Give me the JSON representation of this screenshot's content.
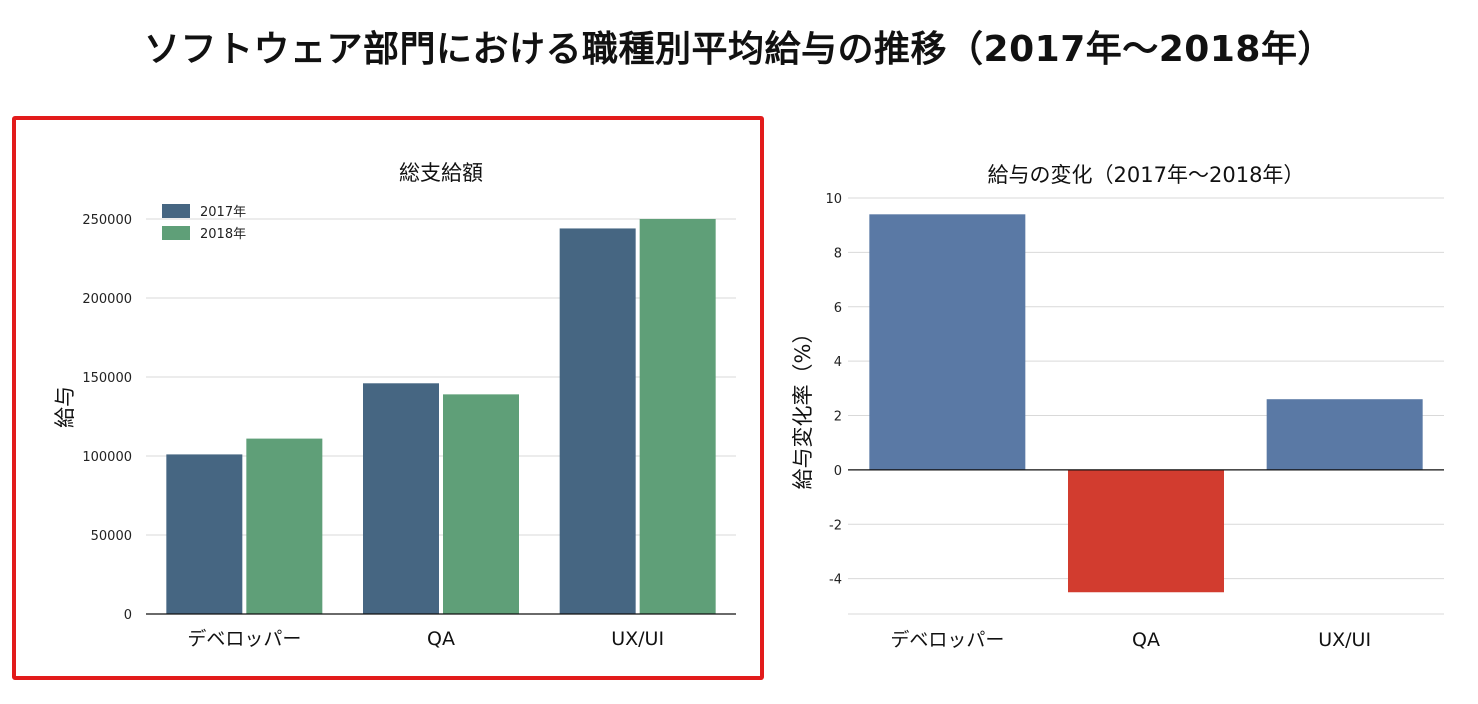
{
  "page_title": "ソフトウェア部門における職種別平均給与の推移（2017年〜2018年）",
  "colors": {
    "series_2017": "#466682",
    "series_2018": "#5f9f78",
    "positive": "#5a79a5",
    "negative": "#d23c2f",
    "highlight_border": "#e21b1b"
  },
  "chart_data": [
    {
      "type": "bar",
      "title": "総支給額",
      "xlabel": "",
      "ylabel": "給与",
      "categories": [
        "デベロッパー",
        "QA",
        "UX/UI"
      ],
      "series": [
        {
          "name": "2017年",
          "values": [
            101000,
            146000,
            244000
          ]
        },
        {
          "name": "2018年",
          "values": [
            111000,
            139000,
            250000
          ]
        }
      ],
      "ylim": [
        0,
        262000
      ],
      "yticks": [
        0,
        50000,
        100000,
        150000,
        200000,
        250000
      ],
      "ytick_labels": [
        "0",
        "50000",
        "100000",
        "150000",
        "200000",
        "250000"
      ],
      "legend": "top-left",
      "grid": true,
      "highlighted": true
    },
    {
      "type": "bar",
      "title": "給与の変化（2017年〜2018年）",
      "xlabel": "",
      "ylabel": "給与変化率（%）",
      "categories": [
        "デベロッパー",
        "QA",
        "UX/UI"
      ],
      "values": [
        9.4,
        -4.5,
        2.6
      ],
      "ylim": [
        -5.3,
        10
      ],
      "yticks": [
        -4,
        -2,
        0,
        2,
        4,
        6,
        8,
        10
      ],
      "ytick_labels": [
        "-4",
        "-2",
        "0",
        "2",
        "4",
        "6",
        "8",
        "10"
      ],
      "grid": true
    }
  ]
}
